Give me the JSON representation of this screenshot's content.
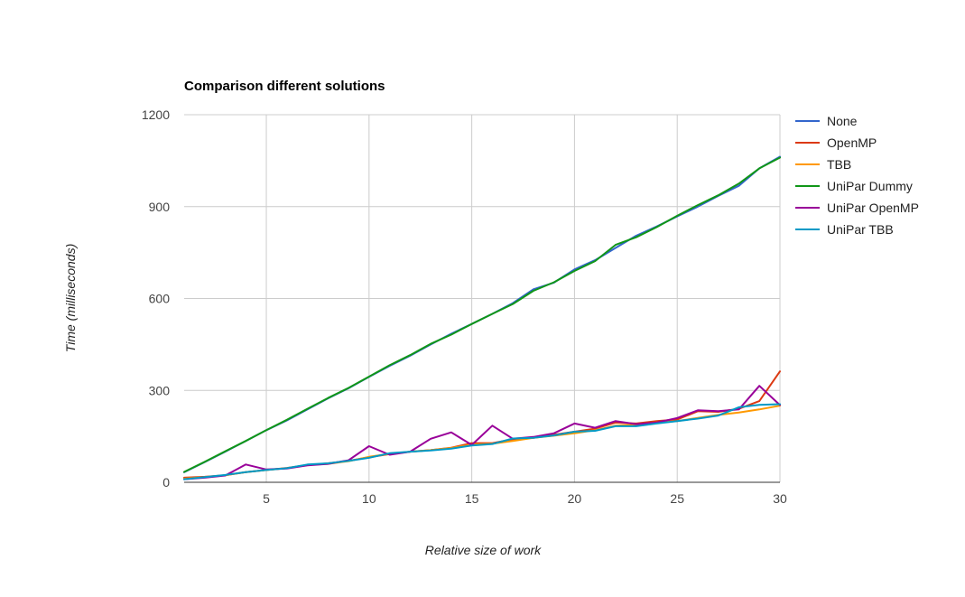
{
  "chart_data": {
    "type": "line",
    "title": "Comparison different solutions",
    "xlabel": "Relative size of work",
    "ylabel": "Time (milliseconds)",
    "xlim": [
      1,
      30
    ],
    "ylim": [
      0,
      1200
    ],
    "x_ticks": [
      5,
      10,
      15,
      20,
      25,
      30
    ],
    "y_ticks": [
      0,
      300,
      600,
      900,
      1200
    ],
    "grid": true,
    "legend_position": "right",
    "x": [
      1,
      2,
      3,
      4,
      5,
      6,
      7,
      8,
      9,
      10,
      11,
      12,
      13,
      14,
      15,
      16,
      17,
      18,
      19,
      20,
      21,
      22,
      23,
      24,
      25,
      26,
      27,
      28,
      29,
      30
    ],
    "series": [
      {
        "name": "None",
        "color": "#3366cc",
        "values": [
          33,
          66,
          100,
          135,
          170,
          202,
          238,
          274,
          307,
          344,
          380,
          413,
          450,
          485,
          517,
          550,
          585,
          630,
          652,
          695,
          725,
          765,
          805,
          835,
          868,
          900,
          935,
          968,
          1025,
          1063
        ]
      },
      {
        "name": "OpenMP",
        "color": "#dc3912",
        "values": [
          15,
          18,
          23,
          33,
          40,
          47,
          56,
          62,
          70,
          82,
          92,
          100,
          105,
          113,
          128,
          128,
          140,
          145,
          155,
          165,
          175,
          195,
          192,
          200,
          205,
          232,
          230,
          240,
          265,
          362
        ]
      },
      {
        "name": "TBB",
        "color": "#ff9900",
        "values": [
          12,
          17,
          23,
          33,
          40,
          46,
          57,
          60,
          69,
          83,
          93,
          100,
          105,
          112,
          123,
          126,
          135,
          145,
          152,
          160,
          170,
          185,
          188,
          195,
          200,
          210,
          220,
          228,
          238,
          250
        ]
      },
      {
        "name": "UniPar Dummy",
        "color": "#109618",
        "values": [
          34,
          67,
          101,
          135,
          170,
          204,
          240,
          275,
          308,
          345,
          382,
          415,
          452,
          482,
          517,
          550,
          582,
          625,
          653,
          690,
          722,
          775,
          800,
          833,
          870,
          905,
          937,
          975,
          1025,
          1060
        ]
      },
      {
        "name": "UniPar OpenMP",
        "color": "#990099",
        "values": [
          10,
          15,
          22,
          58,
          42,
          45,
          55,
          60,
          72,
          118,
          90,
          100,
          142,
          163,
          122,
          185,
          142,
          148,
          160,
          192,
          178,
          200,
          190,
          195,
          210,
          235,
          232,
          238,
          315,
          252
        ]
      },
      {
        "name": "UniPar TBB",
        "color": "#0099c6",
        "values": [
          10,
          17,
          24,
          33,
          40,
          46,
          58,
          62,
          70,
          80,
          95,
          100,
          104,
          110,
          120,
          125,
          143,
          145,
          153,
          165,
          168,
          183,
          183,
          192,
          200,
          208,
          218,
          245,
          253,
          255
        ]
      }
    ]
  }
}
